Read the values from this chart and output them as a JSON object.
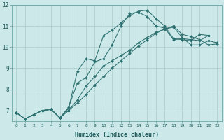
{
  "xlabel": "Humidex (Indice chaleur)",
  "background_color": "#cce8e8",
  "grid_color": "#aacccc",
  "line_color": "#2d7070",
  "xlim": [
    -0.5,
    23.5
  ],
  "ylim": [
    6.5,
    12.0
  ],
  "yticks": [
    7,
    8,
    9,
    10,
    11,
    12
  ],
  "xticks": [
    0,
    1,
    2,
    3,
    4,
    5,
    6,
    7,
    8,
    9,
    10,
    11,
    12,
    13,
    14,
    15,
    16,
    17,
    18,
    19,
    20,
    21,
    22,
    23
  ],
  "series": [
    {
      "x": [
        0,
        1,
        2,
        3,
        4,
        5,
        6,
        7,
        8,
        9,
        10,
        11,
        12,
        13,
        14,
        15,
        16,
        17,
        18,
        19,
        20,
        21,
        22
      ],
      "y": [
        6.9,
        6.6,
        6.8,
        7.0,
        7.05,
        6.65,
        7.1,
        8.85,
        9.45,
        9.35,
        10.55,
        10.8,
        11.15,
        11.5,
        11.7,
        11.75,
        11.35,
        11.0,
        10.4,
        10.35,
        10.3,
        10.6,
        10.55
      ]
    },
    {
      "x": [
        0,
        1,
        2,
        3,
        4,
        5,
        6,
        7,
        8,
        9,
        10,
        11,
        12,
        13,
        14,
        15,
        16,
        17,
        18,
        19,
        20,
        21,
        22
      ],
      "y": [
        6.9,
        6.6,
        6.8,
        7.0,
        7.05,
        6.65,
        7.15,
        8.3,
        8.55,
        9.3,
        9.45,
        10.1,
        11.0,
        11.6,
        11.65,
        11.45,
        11.0,
        10.9,
        10.35,
        10.4,
        10.35,
        10.3,
        10.55
      ]
    },
    {
      "x": [
        0,
        1,
        2,
        3,
        4,
        5,
        6,
        7,
        8,
        9,
        10,
        11,
        12,
        13,
        14,
        15,
        16,
        17,
        18,
        19,
        20,
        21,
        22,
        23
      ],
      "y": [
        6.9,
        6.6,
        6.8,
        7.0,
        7.05,
        6.65,
        7.0,
        7.5,
        8.15,
        8.6,
        9.1,
        9.35,
        9.6,
        9.85,
        10.2,
        10.45,
        10.7,
        10.85,
        10.95,
        10.45,
        10.1,
        10.1,
        10.3,
        10.2
      ]
    },
    {
      "x": [
        0,
        1,
        2,
        3,
        4,
        5,
        6,
        7,
        8,
        9,
        10,
        11,
        12,
        13,
        14,
        15,
        16,
        17,
        18,
        19,
        20,
        21,
        22,
        23
      ],
      "y": [
        6.9,
        6.6,
        6.8,
        7.0,
        7.05,
        6.65,
        7.0,
        7.35,
        7.75,
        8.2,
        8.6,
        9.0,
        9.35,
        9.7,
        10.05,
        10.35,
        10.65,
        10.85,
        11.0,
        10.6,
        10.5,
        10.35,
        10.1,
        10.15
      ]
    }
  ]
}
